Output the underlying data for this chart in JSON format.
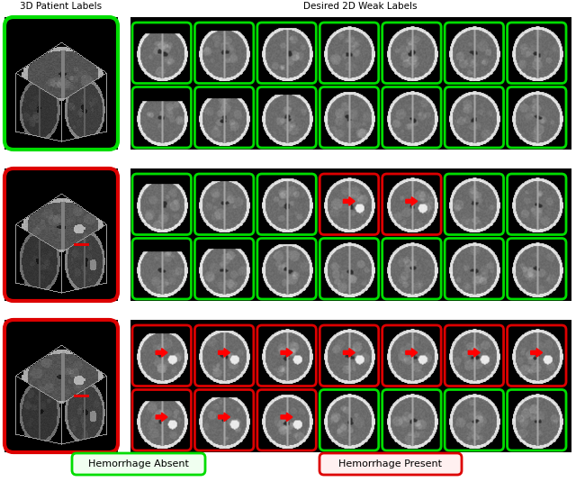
{
  "title_left": "3D Patient Labels",
  "title_right": "Desired 2D Weak Labels",
  "legend_absent": "Hemorrhage Absent",
  "legend_present": "Hemorrhage Present",
  "color_green": "#00DD00",
  "color_red": "#DD0000",
  "fig_bg": "#FFFFFF",
  "row_configs": [
    {
      "3d_border": "green",
      "slice_colors": [
        [
          "green",
          "green",
          "green",
          "green",
          "green",
          "green",
          "green"
        ],
        [
          "green",
          "green",
          "green",
          "green",
          "green",
          "green",
          "green"
        ]
      ],
      "arrows_top": [
        0,
        0,
        0,
        0,
        0,
        0,
        0
      ],
      "arrows_bot": [
        0,
        0,
        0,
        0,
        0,
        0,
        0
      ]
    },
    {
      "3d_border": "red",
      "slice_colors": [
        [
          "green",
          "green",
          "green",
          "red",
          "red",
          "green",
          "green"
        ],
        [
          "green",
          "green",
          "green",
          "green",
          "green",
          "green",
          "green"
        ]
      ],
      "arrows_top": [
        0,
        0,
        0,
        1,
        1,
        0,
        0
      ],
      "arrows_bot": [
        0,
        0,
        0,
        0,
        0,
        0,
        0
      ]
    },
    {
      "3d_border": "red",
      "slice_colors": [
        [
          "red",
          "red",
          "red",
          "red",
          "red",
          "red",
          "red"
        ],
        [
          "red",
          "red",
          "red",
          "green",
          "green",
          "green",
          "green"
        ]
      ],
      "arrows_top": [
        1,
        1,
        1,
        1,
        1,
        1,
        1
      ],
      "arrows_bot": [
        1,
        1,
        1,
        0,
        0,
        0,
        0
      ]
    }
  ]
}
